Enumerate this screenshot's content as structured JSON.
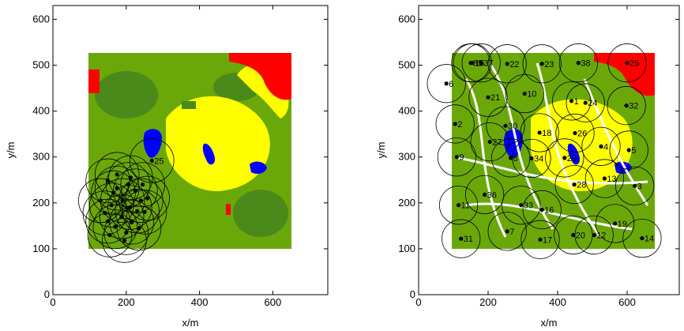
{
  "chart_data": [
    {
      "type": "scatter",
      "title": "",
      "xlabel": "x/m",
      "ylabel": "y/m",
      "xlim": [
        0,
        750
      ],
      "ylim": [
        0,
        630
      ],
      "xticks": [
        0,
        200,
        400,
        600
      ],
      "yticks": [
        0,
        100,
        200,
        300,
        400,
        500,
        600
      ],
      "grid": false,
      "background_map": {
        "x": [
          95,
          640
        ],
        "y": [
          100,
          525
        ]
      },
      "colors": {
        "green": "#6aa80a",
        "darkgreen": "#4b8a1a",
        "yellow": "#ffff00",
        "red": "#ff0000",
        "blue": "#0000ff",
        "cyan": "#00ffff",
        "white": "#ffffff"
      },
      "points": [
        {
          "x": 150,
          "y": 248
        },
        {
          "x": 175,
          "y": 232
        },
        {
          "x": 205,
          "y": 240
        },
        {
          "x": 225,
          "y": 226
        },
        {
          "x": 190,
          "y": 205
        },
        {
          "x": 160,
          "y": 195
        },
        {
          "x": 210,
          "y": 190
        },
        {
          "x": 230,
          "y": 182
        },
        {
          "x": 142,
          "y": 178
        },
        {
          "x": 188,
          "y": 170
        },
        {
          "x": 215,
          "y": 158
        },
        {
          "x": 170,
          "y": 148
        },
        {
          "x": 155,
          "y": 130
        },
        {
          "x": 200,
          "y": 135
        },
        {
          "x": 235,
          "y": 145
        },
        {
          "x": 258,
          "y": 210
        },
        {
          "x": 250,
          "y": 180
        },
        {
          "x": 130,
          "y": 205
        },
        {
          "x": 175,
          "y": 262
        },
        {
          "x": 212,
          "y": 255
        },
        {
          "x": 245,
          "y": 240
        },
        {
          "x": 165,
          "y": 222
        },
        {
          "x": 240,
          "y": 205
        },
        {
          "x": 150,
          "y": 160
        },
        {
          "x": 195,
          "y": 118
        },
        {
          "x": 270,
          "y": 292
        }
      ],
      "labels": [
        "25"
      ],
      "label_point_index": 25,
      "radius": 60
    },
    {
      "type": "scatter",
      "title": "",
      "xlabel": "x/m",
      "ylabel": "y/m",
      "xlim": [
        0,
        750
      ],
      "ylim": [
        0,
        630
      ],
      "xticks": [
        0,
        200,
        400,
        600
      ],
      "yticks": [
        0,
        100,
        200,
        300,
        400,
        500,
        600
      ],
      "grid": false,
      "background_map": {
        "x": [
          95,
          640
        ],
        "y": [
          100,
          525
        ]
      },
      "radius": 55,
      "points": [
        {
          "x": 440,
          "y": 422,
          "label": "1"
        },
        {
          "x": 105,
          "y": 372,
          "label": "2"
        },
        {
          "x": 622,
          "y": 237,
          "label": "3"
        },
        {
          "x": 525,
          "y": 323,
          "label": "4"
        },
        {
          "x": 605,
          "y": 315,
          "label": "5"
        },
        {
          "x": 80,
          "y": 460,
          "label": "6"
        },
        {
          "x": 255,
          "y": 138,
          "label": "7"
        },
        {
          "x": 265,
          "y": 298,
          "label": "8"
        },
        {
          "x": 110,
          "y": 300,
          "label": "9"
        },
        {
          "x": 305,
          "y": 438,
          "label": "10"
        },
        {
          "x": 115,
          "y": 195,
          "label": "11"
        },
        {
          "x": 505,
          "y": 130,
          "label": "12"
        },
        {
          "x": 535,
          "y": 253,
          "label": "13"
        },
        {
          "x": 643,
          "y": 123,
          "label": "14"
        },
        {
          "x": 155,
          "y": 505,
          "label": "15"
        },
        {
          "x": 355,
          "y": 185,
          "label": "16"
        },
        {
          "x": 350,
          "y": 120,
          "label": "17"
        },
        {
          "x": 348,
          "y": 353,
          "label": "18"
        },
        {
          "x": 565,
          "y": 155,
          "label": "19"
        },
        {
          "x": 445,
          "y": 130,
          "label": "20"
        },
        {
          "x": 200,
          "y": 430,
          "label": "21"
        },
        {
          "x": 255,
          "y": 503,
          "label": "22"
        },
        {
          "x": 355,
          "y": 503,
          "label": "23"
        },
        {
          "x": 480,
          "y": 418,
          "label": "24"
        },
        {
          "x": 600,
          "y": 505,
          "label": "25"
        },
        {
          "x": 450,
          "y": 352,
          "label": "26"
        },
        {
          "x": 205,
          "y": 333,
          "label": "27"
        },
        {
          "x": 448,
          "y": 240,
          "label": "28"
        },
        {
          "x": 420,
          "y": 298,
          "label": "29"
        },
        {
          "x": 250,
          "y": 368,
          "label": "30"
        },
        {
          "x": 122,
          "y": 122,
          "label": "31"
        },
        {
          "x": 598,
          "y": 412,
          "label": "32"
        },
        {
          "x": 295,
          "y": 195,
          "label": "33"
        },
        {
          "x": 325,
          "y": 297,
          "label": "34"
        },
        {
          "x": 150,
          "y": 505,
          "label": "35"
        },
        {
          "x": 190,
          "y": 218,
          "label": "36"
        },
        {
          "x": 180,
          "y": 505,
          "label": "37"
        },
        {
          "x": 460,
          "y": 505,
          "label": "38"
        }
      ]
    }
  ]
}
